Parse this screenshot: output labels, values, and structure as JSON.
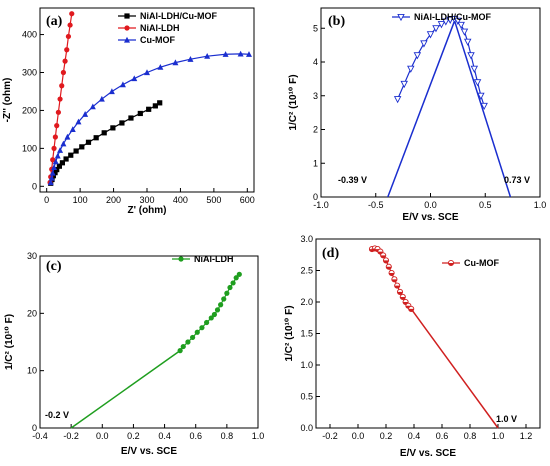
{
  "chart_data": [
    {
      "panel": "(a)",
      "type": "scatter",
      "xlabel": "Z' (ohm)",
      "ylabel": "-Z'' (ohm)",
      "xlim": [
        -20,
        620
      ],
      "ylim": [
        -15,
        470
      ],
      "xticks": [
        0,
        100,
        200,
        300,
        400,
        500,
        600
      ],
      "yticks": [
        0,
        100,
        200,
        300,
        400
      ],
      "legend_position": "top-right",
      "series": [
        {
          "name": "NiAl-LDH/Cu-MOF",
          "color": "#000000",
          "marker": "square",
          "x": [
            12,
            16,
            20,
            25,
            30,
            38,
            47,
            58,
            72,
            88,
            105,
            125,
            148,
            172,
            198,
            225,
            252,
            280,
            305,
            325,
            338
          ],
          "y": [
            8,
            18,
            28,
            36,
            44,
            53,
            62,
            72,
            82,
            93,
            104,
            116,
            128,
            141,
            154,
            167,
            180,
            192,
            203,
            212,
            220
          ]
        },
        {
          "name": "NiAl-LDH",
          "color": "#e0191e",
          "marker": "circle",
          "x": [
            10,
            12,
            15,
            18,
            22,
            26,
            30,
            35,
            40,
            45,
            50,
            55,
            60,
            65,
            70,
            75
          ],
          "y": [
            10,
            25,
            45,
            70,
            100,
            130,
            160,
            195,
            230,
            265,
            300,
            330,
            360,
            395,
            425,
            455
          ]
        },
        {
          "name": "Cu-MOF",
          "color": "#1a2ecf",
          "marker": "triangle",
          "x": [
            12,
            15,
            18,
            22,
            27,
            33,
            40,
            50,
            62,
            78,
            95,
            115,
            138,
            165,
            195,
            228,
            262,
            300,
            340,
            385,
            430,
            480,
            535,
            580,
            605
          ],
          "y": [
            10,
            22,
            35,
            50,
            65,
            80,
            95,
            112,
            130,
            150,
            170,
            190,
            210,
            230,
            250,
            268,
            284,
            300,
            314,
            326,
            335,
            343,
            348,
            349,
            348
          ]
        }
      ]
    },
    {
      "panel": "(b)",
      "type": "line",
      "xlabel": "E/V vs. SCE",
      "ylabel": "1/C² (10¹⁰ F)",
      "xlim": [
        -1.0,
        1.0
      ],
      "ylim": [
        0,
        5.6
      ],
      "xticks": [
        -1.0,
        -0.5,
        0.0,
        0.5,
        1.0
      ],
      "yticks": [
        0,
        1,
        2,
        3,
        4,
        5
      ],
      "legend_position": "top-right",
      "annotations": [
        "-0.39 V",
        "0.73 V"
      ],
      "series": [
        {
          "name": "NiAl-LDH/Cu-MOF",
          "color": "#1a2ecf",
          "marker": "triangle-down",
          "x": [
            -0.3,
            -0.24,
            -0.18,
            -0.12,
            -0.06,
            0.0,
            0.05,
            0.1,
            0.14,
            0.18,
            0.22,
            0.25,
            0.28,
            0.31,
            0.34,
            0.37,
            0.4,
            0.43,
            0.46,
            0.49
          ],
          "y": [
            2.9,
            3.35,
            3.8,
            4.2,
            4.55,
            4.82,
            5.0,
            5.12,
            5.2,
            5.25,
            5.27,
            5.22,
            5.1,
            4.9,
            4.6,
            4.2,
            3.8,
            3.4,
            3.0,
            2.7
          ]
        }
      ],
      "fit_lines": [
        {
          "x": [
            -0.39,
            0.22
          ],
          "y": [
            0,
            5.22
          ]
        },
        {
          "x": [
            0.22,
            0.73
          ],
          "y": [
            5.22,
            0
          ]
        }
      ]
    },
    {
      "panel": "(c)",
      "type": "line",
      "xlabel": "E/V vs. SCE",
      "ylabel": "1/C² (10¹⁰ F)",
      "xlim": [
        -0.4,
        1.0
      ],
      "ylim": [
        0,
        30
      ],
      "xticks": [
        -0.4,
        -0.2,
        0.0,
        0.2,
        0.4,
        0.6,
        0.8,
        1.0
      ],
      "yticks": [
        0,
        10,
        20,
        30
      ],
      "legend_position": "top-right",
      "annotations": [
        "-0.2 V"
      ],
      "series": [
        {
          "name": "NiAl-LDH",
          "color": "#1f9e1f",
          "marker": "circle",
          "x": [
            0.5,
            0.52,
            0.55,
            0.58,
            0.61,
            0.64,
            0.67,
            0.7,
            0.72,
            0.74,
            0.76,
            0.78,
            0.8,
            0.82,
            0.84,
            0.86,
            0.88
          ],
          "y": [
            13.5,
            14.2,
            15.0,
            15.8,
            16.7,
            17.5,
            18.4,
            19.2,
            19.8,
            20.6,
            21.5,
            22.5,
            23.5,
            24.5,
            25.3,
            26.2,
            26.8
          ]
        }
      ],
      "fit_lines": [
        {
          "x": [
            -0.2,
            0.5
          ],
          "y": [
            0,
            13.5
          ]
        }
      ]
    },
    {
      "panel": "(d)",
      "type": "line",
      "xlabel": "E/V vs. SCE",
      "ylabel": "1/C² (10¹⁰ F)",
      "xlim": [
        -0.3,
        1.3
      ],
      "ylim": [
        0,
        3.0
      ],
      "xticks": [
        -0.2,
        0.0,
        0.2,
        0.4,
        0.6,
        0.8,
        1.0,
        1.2
      ],
      "yticks": [
        0.0,
        0.5,
        1.0,
        1.5,
        2.0,
        2.5,
        3.0
      ],
      "legend_position": "top-right",
      "annotations": [
        "1.0 V"
      ],
      "series": [
        {
          "name": "Cu-MOF",
          "color": "#d02020",
          "marker": "circle-half",
          "x": [
            0.1,
            0.12,
            0.14,
            0.16,
            0.18,
            0.2,
            0.22,
            0.24,
            0.26,
            0.28,
            0.3,
            0.32,
            0.34,
            0.36,
            0.38
          ],
          "y": [
            2.84,
            2.85,
            2.84,
            2.8,
            2.74,
            2.66,
            2.56,
            2.46,
            2.36,
            2.26,
            2.16,
            2.08,
            2.0,
            1.94,
            1.89
          ]
        }
      ],
      "fit_lines": [
        {
          "x": [
            0.38,
            1.0
          ],
          "y": [
            1.89,
            0
          ]
        }
      ]
    }
  ]
}
